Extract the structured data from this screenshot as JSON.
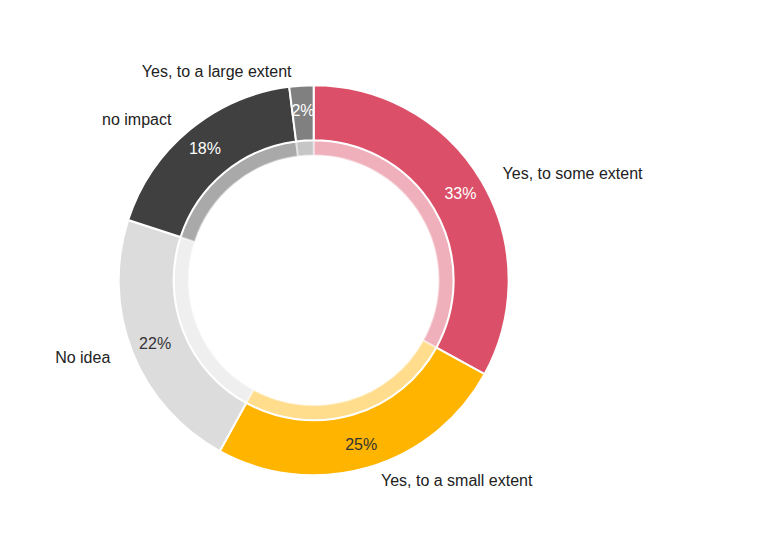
{
  "chart_data": {
    "type": "pie",
    "categories": [
      "Yes, to some extent",
      "Yes, to a small extent",
      "No idea",
      "no impact",
      "Yes, to a large extent"
    ],
    "values": [
      33,
      25,
      22,
      18,
      2
    ],
    "value_labels": [
      "33%",
      "25%",
      "22%",
      "18%",
      "2%"
    ],
    "colors": [
      "#db5068",
      "#ffb400",
      "#dcdcdc",
      "#404040",
      "#808080"
    ],
    "data_labels": true
  }
}
